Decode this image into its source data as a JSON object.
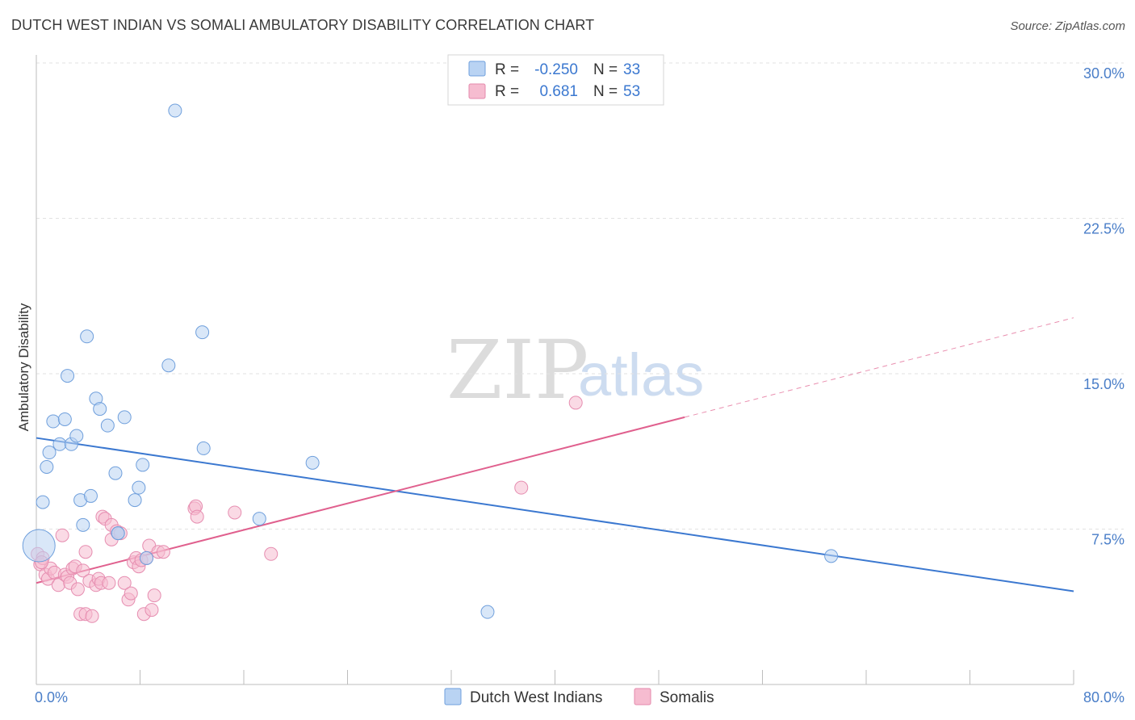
{
  "title": "DUTCH WEST INDIAN VS SOMALI AMBULATORY DISABILITY CORRELATION CHART",
  "source": "Source: ZipAtlas.com",
  "colors": {
    "blue": "#3b78d0",
    "blue_fill": "#b9d3f3",
    "pink": "#e0608e",
    "pink_fill": "#f6bcd0",
    "tick": "#4a7ec8",
    "grid": "#e0e0e0"
  },
  "legend": {
    "r_label": "R =",
    "n_label": "N =",
    "rows": [
      {
        "series": "Dutch West Indians",
        "r": "-0.250",
        "n": "33"
      },
      {
        "series": "Somalis",
        "r": "0.681",
        "n": "53"
      }
    ]
  },
  "watermark": {
    "part1": "ZIP",
    "part2": "atlas"
  },
  "chart_data": {
    "type": "scatter",
    "title": "DUTCH WEST INDIAN VS SOMALI AMBULATORY DISABILITY CORRELATION CHART",
    "xlabel": "",
    "ylabel": "Ambulatory Disability",
    "xlim": [
      0,
      80
    ],
    "ylim": [
      0,
      30
    ],
    "x_tick_labels": [
      "0.0%",
      "80.0%"
    ],
    "y_ticks": [
      7.5,
      15.0,
      22.5,
      30.0
    ],
    "y_tick_labels": [
      "7.5%",
      "15.0%",
      "22.5%",
      "30.0%"
    ],
    "grid": true,
    "series": [
      {
        "name": "Dutch West Indians",
        "color": "#3b78d0",
        "points": [
          [
            0.2,
            6.7
          ],
          [
            0.5,
            8.8
          ],
          [
            0.8,
            10.5
          ],
          [
            1.0,
            11.2
          ],
          [
            1.3,
            12.7
          ],
          [
            1.8,
            11.6
          ],
          [
            2.2,
            12.8
          ],
          [
            2.4,
            14.9
          ],
          [
            2.7,
            11.6
          ],
          [
            3.1,
            12.0
          ],
          [
            3.4,
            8.9
          ],
          [
            3.6,
            7.7
          ],
          [
            3.9,
            16.8
          ],
          [
            4.2,
            9.1
          ],
          [
            4.6,
            13.8
          ],
          [
            4.9,
            13.3
          ],
          [
            5.5,
            12.5
          ],
          [
            6.1,
            10.2
          ],
          [
            6.3,
            7.3
          ],
          [
            6.3,
            7.3
          ],
          [
            6.8,
            12.9
          ],
          [
            7.6,
            8.9
          ],
          [
            7.9,
            9.5
          ],
          [
            8.2,
            10.6
          ],
          [
            8.5,
            6.1
          ],
          [
            10.2,
            15.4
          ],
          [
            10.7,
            27.7
          ],
          [
            12.8,
            17.0
          ],
          [
            12.9,
            11.4
          ],
          [
            17.2,
            8.0
          ],
          [
            21.3,
            10.7
          ],
          [
            34.8,
            3.5
          ],
          [
            61.3,
            6.2
          ]
        ],
        "trend": {
          "x": [
            0,
            80
          ],
          "y": [
            11.9,
            4.5
          ]
        }
      },
      {
        "name": "Somalis",
        "color": "#e0608e",
        "points": [
          [
            0.1,
            6.3
          ],
          [
            0.3,
            5.8
          ],
          [
            0.5,
            6.1
          ],
          [
            0.7,
            5.3
          ],
          [
            0.9,
            5.1
          ],
          [
            1.1,
            5.6
          ],
          [
            1.4,
            5.4
          ],
          [
            1.7,
            4.8
          ],
          [
            2.0,
            7.2
          ],
          [
            2.2,
            5.3
          ],
          [
            2.4,
            5.2
          ],
          [
            2.6,
            4.9
          ],
          [
            2.8,
            5.6
          ],
          [
            3.0,
            5.7
          ],
          [
            3.2,
            4.6
          ],
          [
            3.4,
            3.4
          ],
          [
            3.6,
            5.5
          ],
          [
            3.8,
            3.4
          ],
          [
            3.8,
            6.4
          ],
          [
            4.1,
            5.0
          ],
          [
            4.3,
            3.3
          ],
          [
            4.6,
            4.8
          ],
          [
            4.8,
            5.1
          ],
          [
            5.0,
            4.9
          ],
          [
            5.1,
            8.1
          ],
          [
            5.3,
            8.0
          ],
          [
            5.6,
            4.9
          ],
          [
            5.8,
            7.0
          ],
          [
            5.8,
            7.7
          ],
          [
            6.2,
            7.4
          ],
          [
            6.5,
            7.3
          ],
          [
            6.8,
            4.9
          ],
          [
            7.1,
            4.1
          ],
          [
            7.3,
            4.4
          ],
          [
            7.5,
            5.9
          ],
          [
            7.7,
            6.1
          ],
          [
            7.9,
            5.7
          ],
          [
            8.1,
            6.0
          ],
          [
            8.3,
            3.4
          ],
          [
            8.5,
            6.1
          ],
          [
            8.7,
            6.7
          ],
          [
            8.9,
            3.6
          ],
          [
            9.1,
            4.3
          ],
          [
            9.4,
            6.4
          ],
          [
            9.8,
            6.4
          ],
          [
            12.2,
            8.5
          ],
          [
            12.3,
            8.6
          ],
          [
            12.4,
            8.1
          ],
          [
            15.3,
            8.3
          ],
          [
            18.1,
            6.3
          ],
          [
            37.4,
            9.5
          ],
          [
            41.6,
            13.6
          ],
          [
            0.4,
            5.9
          ]
        ],
        "trend": {
          "x": [
            0,
            50
          ],
          "y": [
            4.9,
            12.9
          ]
        },
        "trend_dashed": {
          "x": [
            50,
            80
          ],
          "y": [
            12.9,
            17.7
          ]
        }
      }
    ]
  }
}
